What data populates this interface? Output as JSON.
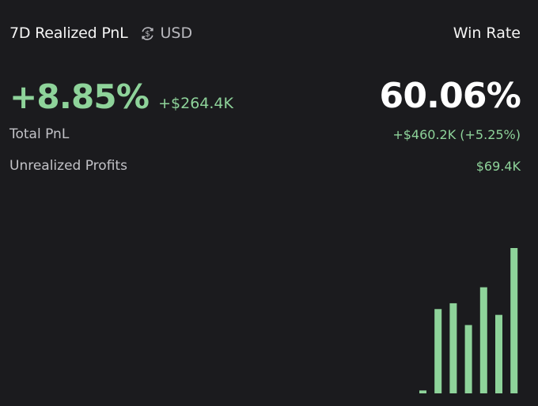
{
  "header": {
    "title": "7D Realized PnL",
    "currency": "USD",
    "currency_icon": "dollar-exchange-icon",
    "win_rate_label": "Win Rate"
  },
  "summary": {
    "realized_percent": "+8.85%",
    "realized_amount": "+$264.4K",
    "win_rate": "60.06%"
  },
  "stats": {
    "total_label": "Total PnL",
    "total_value": "+$460.2K (+5.25%)",
    "unrealized_label": "Unrealized Profits",
    "unrealized_value": "$69.4K"
  },
  "colors": {
    "background": "#1b1b1e",
    "positive": "#8ed39a",
    "text": "#f2f2f2",
    "muted": "#c2c2c7"
  },
  "chart_data": {
    "type": "bar",
    "categories": [
      1,
      2,
      3,
      4,
      5,
      6,
      7
    ],
    "values": [
      2,
      58,
      62,
      47,
      73,
      54,
      100
    ],
    "ylim": [
      0,
      100
    ],
    "color": "#8ed39a",
    "grid": false,
    "legend": "none",
    "axes_visible": false
  }
}
